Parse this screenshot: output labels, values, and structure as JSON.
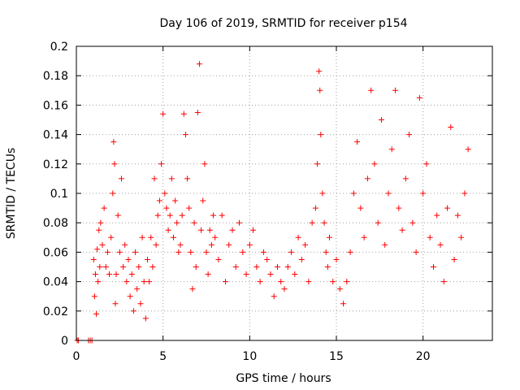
{
  "chart_data": {
    "type": "scatter",
    "title": "Day 106 of 2019, SRMTID for receiver p154",
    "xlabel": "GPS time / hours",
    "ylabel": "SRMTID / TECUs",
    "xlim": [
      0,
      24
    ],
    "ylim": [
      0,
      0.2
    ],
    "xticks": [
      0,
      5,
      10,
      15,
      20
    ],
    "xtick_labels": [
      "0",
      "5",
      "10",
      "15",
      "20"
    ],
    "yticks": [
      0,
      0.02,
      0.04,
      0.06,
      0.08,
      0.1,
      0.12,
      0.14,
      0.16,
      0.18,
      0.2
    ],
    "ytick_labels": [
      "0",
      "0.02",
      "0.04",
      "0.06",
      "0.08",
      "0.1",
      "0.12",
      "0.14",
      "0.16",
      "0.18",
      "0.2"
    ],
    "grid": true,
    "marker": "+",
    "color": "#ff0000",
    "series": [
      {
        "name": "SRMTID",
        "x": [
          0.05,
          0.12,
          0.7,
          0.8,
          0.9,
          1.0,
          1.05,
          1.1,
          1.15,
          1.2,
          1.25,
          1.3,
          1.35,
          1.4,
          1.5,
          1.6,
          1.7,
          1.8,
          1.9,
          2.0,
          2.1,
          2.15,
          2.2,
          2.25,
          2.3,
          2.4,
          2.5,
          2.6,
          2.7,
          2.8,
          2.9,
          3.0,
          3.1,
          3.2,
          3.3,
          3.4,
          3.5,
          3.6,
          3.7,
          3.8,
          3.9,
          4.0,
          4.1,
          4.2,
          4.3,
          4.4,
          4.5,
          4.6,
          4.7,
          4.8,
          4.9,
          5.0,
          5.1,
          5.2,
          5.3,
          5.4,
          5.5,
          5.6,
          5.7,
          5.8,
          5.9,
          6.0,
          6.1,
          6.2,
          6.3,
          6.4,
          6.5,
          6.6,
          6.7,
          6.8,
          6.9,
          7.0,
          7.1,
          7.2,
          7.3,
          7.4,
          7.5,
          7.6,
          7.7,
          7.8,
          7.9,
          8.0,
          8.2,
          8.4,
          8.6,
          8.8,
          9.0,
          9.2,
          9.4,
          9.6,
          9.8,
          10.0,
          10.2,
          10.4,
          10.6,
          10.8,
          11.0,
          11.2,
          11.4,
          11.6,
          11.8,
          12.0,
          12.2,
          12.4,
          12.6,
          12.8,
          13.0,
          13.2,
          13.4,
          13.6,
          13.8,
          13.9,
          14.0,
          14.05,
          14.1,
          14.2,
          14.3,
          14.4,
          14.5,
          14.6,
          14.8,
          15.0,
          15.2,
          15.4,
          15.6,
          15.8,
          16.0,
          16.2,
          16.4,
          16.6,
          16.8,
          17.0,
          17.2,
          17.4,
          17.6,
          17.8,
          18.0,
          18.2,
          18.4,
          18.6,
          18.8,
          19.0,
          19.2,
          19.4,
          19.6,
          19.8,
          20.0,
          20.2,
          20.4,
          20.6,
          20.8,
          21.0,
          21.2,
          21.4,
          21.6,
          21.8,
          22.0,
          22.2,
          22.4,
          22.6
        ],
        "y": [
          0.0,
          0.0,
          0.0,
          0.0,
          0.0,
          0.055,
          0.03,
          0.045,
          0.018,
          0.062,
          0.04,
          0.075,
          0.05,
          0.08,
          0.065,
          0.09,
          0.05,
          0.06,
          0.045,
          0.07,
          0.1,
          0.135,
          0.12,
          0.025,
          0.045,
          0.085,
          0.06,
          0.11,
          0.05,
          0.065,
          0.04,
          0.055,
          0.03,
          0.045,
          0.02,
          0.06,
          0.035,
          0.05,
          0.025,
          0.07,
          0.04,
          0.015,
          0.055,
          0.04,
          0.07,
          0.05,
          0.11,
          0.065,
          0.085,
          0.095,
          0.12,
          0.154,
          0.1,
          0.09,
          0.075,
          0.085,
          0.11,
          0.07,
          0.095,
          0.08,
          0.06,
          0.065,
          0.085,
          0.154,
          0.14,
          0.11,
          0.09,
          0.06,
          0.035,
          0.08,
          0.05,
          0.155,
          0.188,
          0.075,
          0.095,
          0.12,
          0.06,
          0.045,
          0.075,
          0.065,
          0.085,
          0.07,
          0.055,
          0.085,
          0.04,
          0.065,
          0.075,
          0.05,
          0.08,
          0.06,
          0.045,
          0.065,
          0.075,
          0.05,
          0.04,
          0.06,
          0.055,
          0.045,
          0.03,
          0.05,
          0.04,
          0.035,
          0.05,
          0.06,
          0.045,
          0.07,
          0.055,
          0.065,
          0.04,
          0.08,
          0.09,
          0.12,
          0.183,
          0.17,
          0.14,
          0.1,
          0.08,
          0.06,
          0.05,
          0.07,
          0.04,
          0.055,
          0.035,
          0.025,
          0.04,
          0.06,
          0.1,
          0.135,
          0.09,
          0.07,
          0.11,
          0.17,
          0.12,
          0.08,
          0.15,
          0.065,
          0.1,
          0.13,
          0.17,
          0.09,
          0.075,
          0.11,
          0.14,
          0.08,
          0.06,
          0.165,
          0.1,
          0.12,
          0.07,
          0.05,
          0.085,
          0.065,
          0.04,
          0.09,
          0.145,
          0.055,
          0.085,
          0.07,
          0.1,
          0.13
        ]
      }
    ]
  }
}
